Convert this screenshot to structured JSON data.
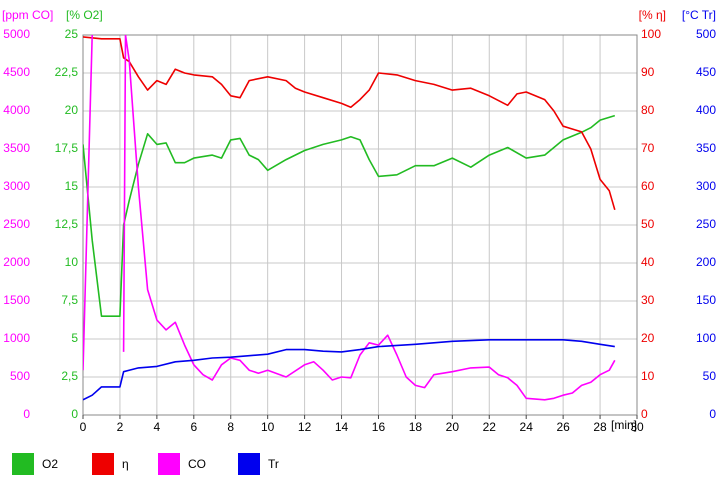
{
  "chart_data": {
    "type": "line",
    "grid": true,
    "xlabel": "[min]",
    "xlim": [
      0,
      30
    ],
    "xticks": [
      0,
      2,
      4,
      6,
      8,
      10,
      12,
      14,
      16,
      18,
      20,
      22,
      24,
      26,
      28,
      30
    ],
    "axes": [
      {
        "label": "[ppm CO]",
        "color": "#ff00ff",
        "side": "left",
        "lim": [
          0,
          5000
        ],
        "ticks": [
          0,
          500,
          1000,
          1500,
          2000,
          2500,
          3000,
          3500,
          4000,
          4500,
          5000
        ]
      },
      {
        "label": "[% O2]",
        "color": "#22bb22",
        "side": "left",
        "lim": [
          0,
          25
        ],
        "ticks": [
          0,
          {
            "value": 2.5,
            "label": "2,5"
          },
          5,
          {
            "value": 7.5,
            "label": "7,5"
          },
          10,
          {
            "value": 12.5,
            "label": "12,5"
          },
          15,
          {
            "value": 17.5,
            "label": "17,5"
          },
          20,
          {
            "value": 22.5,
            "label": "22,5"
          },
          25
        ]
      },
      {
        "label": "[% η]",
        "color": "#ee0000",
        "side": "right",
        "lim": [
          0,
          100
        ],
        "ticks": [
          0,
          10,
          20,
          30,
          40,
          50,
          60,
          70,
          80,
          90,
          100
        ]
      },
      {
        "label": "[°C Tr]",
        "color": "#0000ee",
        "side": "right",
        "lim": [
          0,
          500
        ],
        "ticks": [
          0,
          50,
          100,
          150,
          200,
          250,
          300,
          350,
          400,
          450,
          500
        ]
      }
    ],
    "series": [
      {
        "name": "O2",
        "color": "#22bb22",
        "axis": 1,
        "x": [
          0,
          0.5,
          1,
          1.5,
          2,
          2.2,
          2.5,
          3,
          3.5,
          4,
          4.5,
          5,
          5.5,
          6,
          7,
          7.5,
          8,
          8.5,
          9,
          9.5,
          10,
          11,
          12,
          13,
          14,
          14.5,
          15,
          15.5,
          16,
          17,
          18,
          19,
          20,
          21,
          22,
          23,
          24,
          25,
          26,
          27,
          27.5,
          28,
          28.8
        ],
        "values": [
          17.8,
          11.5,
          6.5,
          6.5,
          6.5,
          12.5,
          14.1,
          16.5,
          18.5,
          17.8,
          17.9,
          16.6,
          16.6,
          16.9,
          17.1,
          16.9,
          18.1,
          18.2,
          17.1,
          16.8,
          16.1,
          16.8,
          17.4,
          17.8,
          18.1,
          18.3,
          18.1,
          16.8,
          15.7,
          15.8,
          16.4,
          16.4,
          16.9,
          16.3,
          17.1,
          17.6,
          16.9,
          17.1,
          18.1,
          18.6,
          18.9,
          19.4,
          19.7
        ]
      },
      {
        "name": "η",
        "color": "#ee0000",
        "axis": 2,
        "x": [
          0,
          1,
          2,
          2.2,
          2.5,
          3,
          3.5,
          4,
          4.5,
          5,
          5.5,
          6,
          7,
          7.5,
          8,
          8.5,
          9,
          10,
          11,
          11.5,
          12,
          13,
          14,
          14.5,
          15,
          15.5,
          16,
          17,
          18,
          19,
          20,
          21,
          22,
          23,
          23.5,
          24,
          25,
          25.5,
          26,
          27,
          27.5,
          28,
          28.5,
          28.8
        ],
        "values": [
          99.5,
          99,
          99,
          94,
          93,
          89,
          85.5,
          88,
          87,
          91,
          90,
          89.5,
          89,
          87,
          84,
          83.5,
          88,
          89,
          88,
          86,
          85,
          83.5,
          82,
          81,
          83,
          85.5,
          90,
          89.5,
          88,
          87,
          85.5,
          86,
          84,
          81.5,
          84.5,
          85,
          83,
          80,
          76,
          74.5,
          70,
          62,
          59,
          54
        ]
      },
      {
        "name": "CO",
        "color": "#ff00ff",
        "axis": 0,
        "x": [
          0,
          0.5,
          1,
          2,
          2.2,
          2.3,
          2.5,
          3,
          3.5,
          4,
          4.5,
          5,
          5.5,
          6,
          6.5,
          7,
          7.5,
          8,
          8.5,
          9,
          9.5,
          10,
          11,
          12,
          12.5,
          13,
          13.5,
          14,
          14.5,
          15,
          15.5,
          16,
          16.5,
          17,
          17.5,
          18,
          18.5,
          19,
          19.5,
          20,
          21,
          22,
          22.5,
          23,
          23.5,
          24,
          25,
          25.5,
          26,
          26.5,
          27,
          27.5,
          28,
          28.5,
          28.8
        ],
        "values": [
          590,
          5000,
          null,
          null,
          830,
          5000,
          4670,
          3000,
          1650,
          1250,
          1120,
          1220,
          920,
          660,
          530,
          460,
          660,
          750,
          720,
          590,
          550,
          590,
          500,
          660,
          700,
          590,
          460,
          500,
          490,
          790,
          950,
          920,
          1050,
          790,
          500,
          390,
          360,
          530,
          550,
          570,
          620,
          630,
          530,
          490,
          390,
          220,
          200,
          220,
          260,
          290,
          390,
          430,
          530,
          590,
          720
        ]
      },
      {
        "name": "Tr",
        "color": "#0000ee",
        "axis": 3,
        "x": [
          0,
          0.5,
          1,
          2,
          2.2,
          3,
          4,
          5,
          6,
          7,
          8,
          9,
          10,
          11,
          12,
          13,
          14,
          15,
          16,
          18,
          20,
          22,
          24,
          26,
          27,
          28,
          28.8
        ],
        "values": [
          20,
          26,
          37,
          37,
          57,
          62,
          64,
          70,
          72,
          75,
          76,
          78,
          80,
          86,
          86,
          84,
          83,
          86,
          90,
          93,
          97,
          99,
          99,
          99,
          97,
          93,
          90
        ]
      }
    ]
  }
}
